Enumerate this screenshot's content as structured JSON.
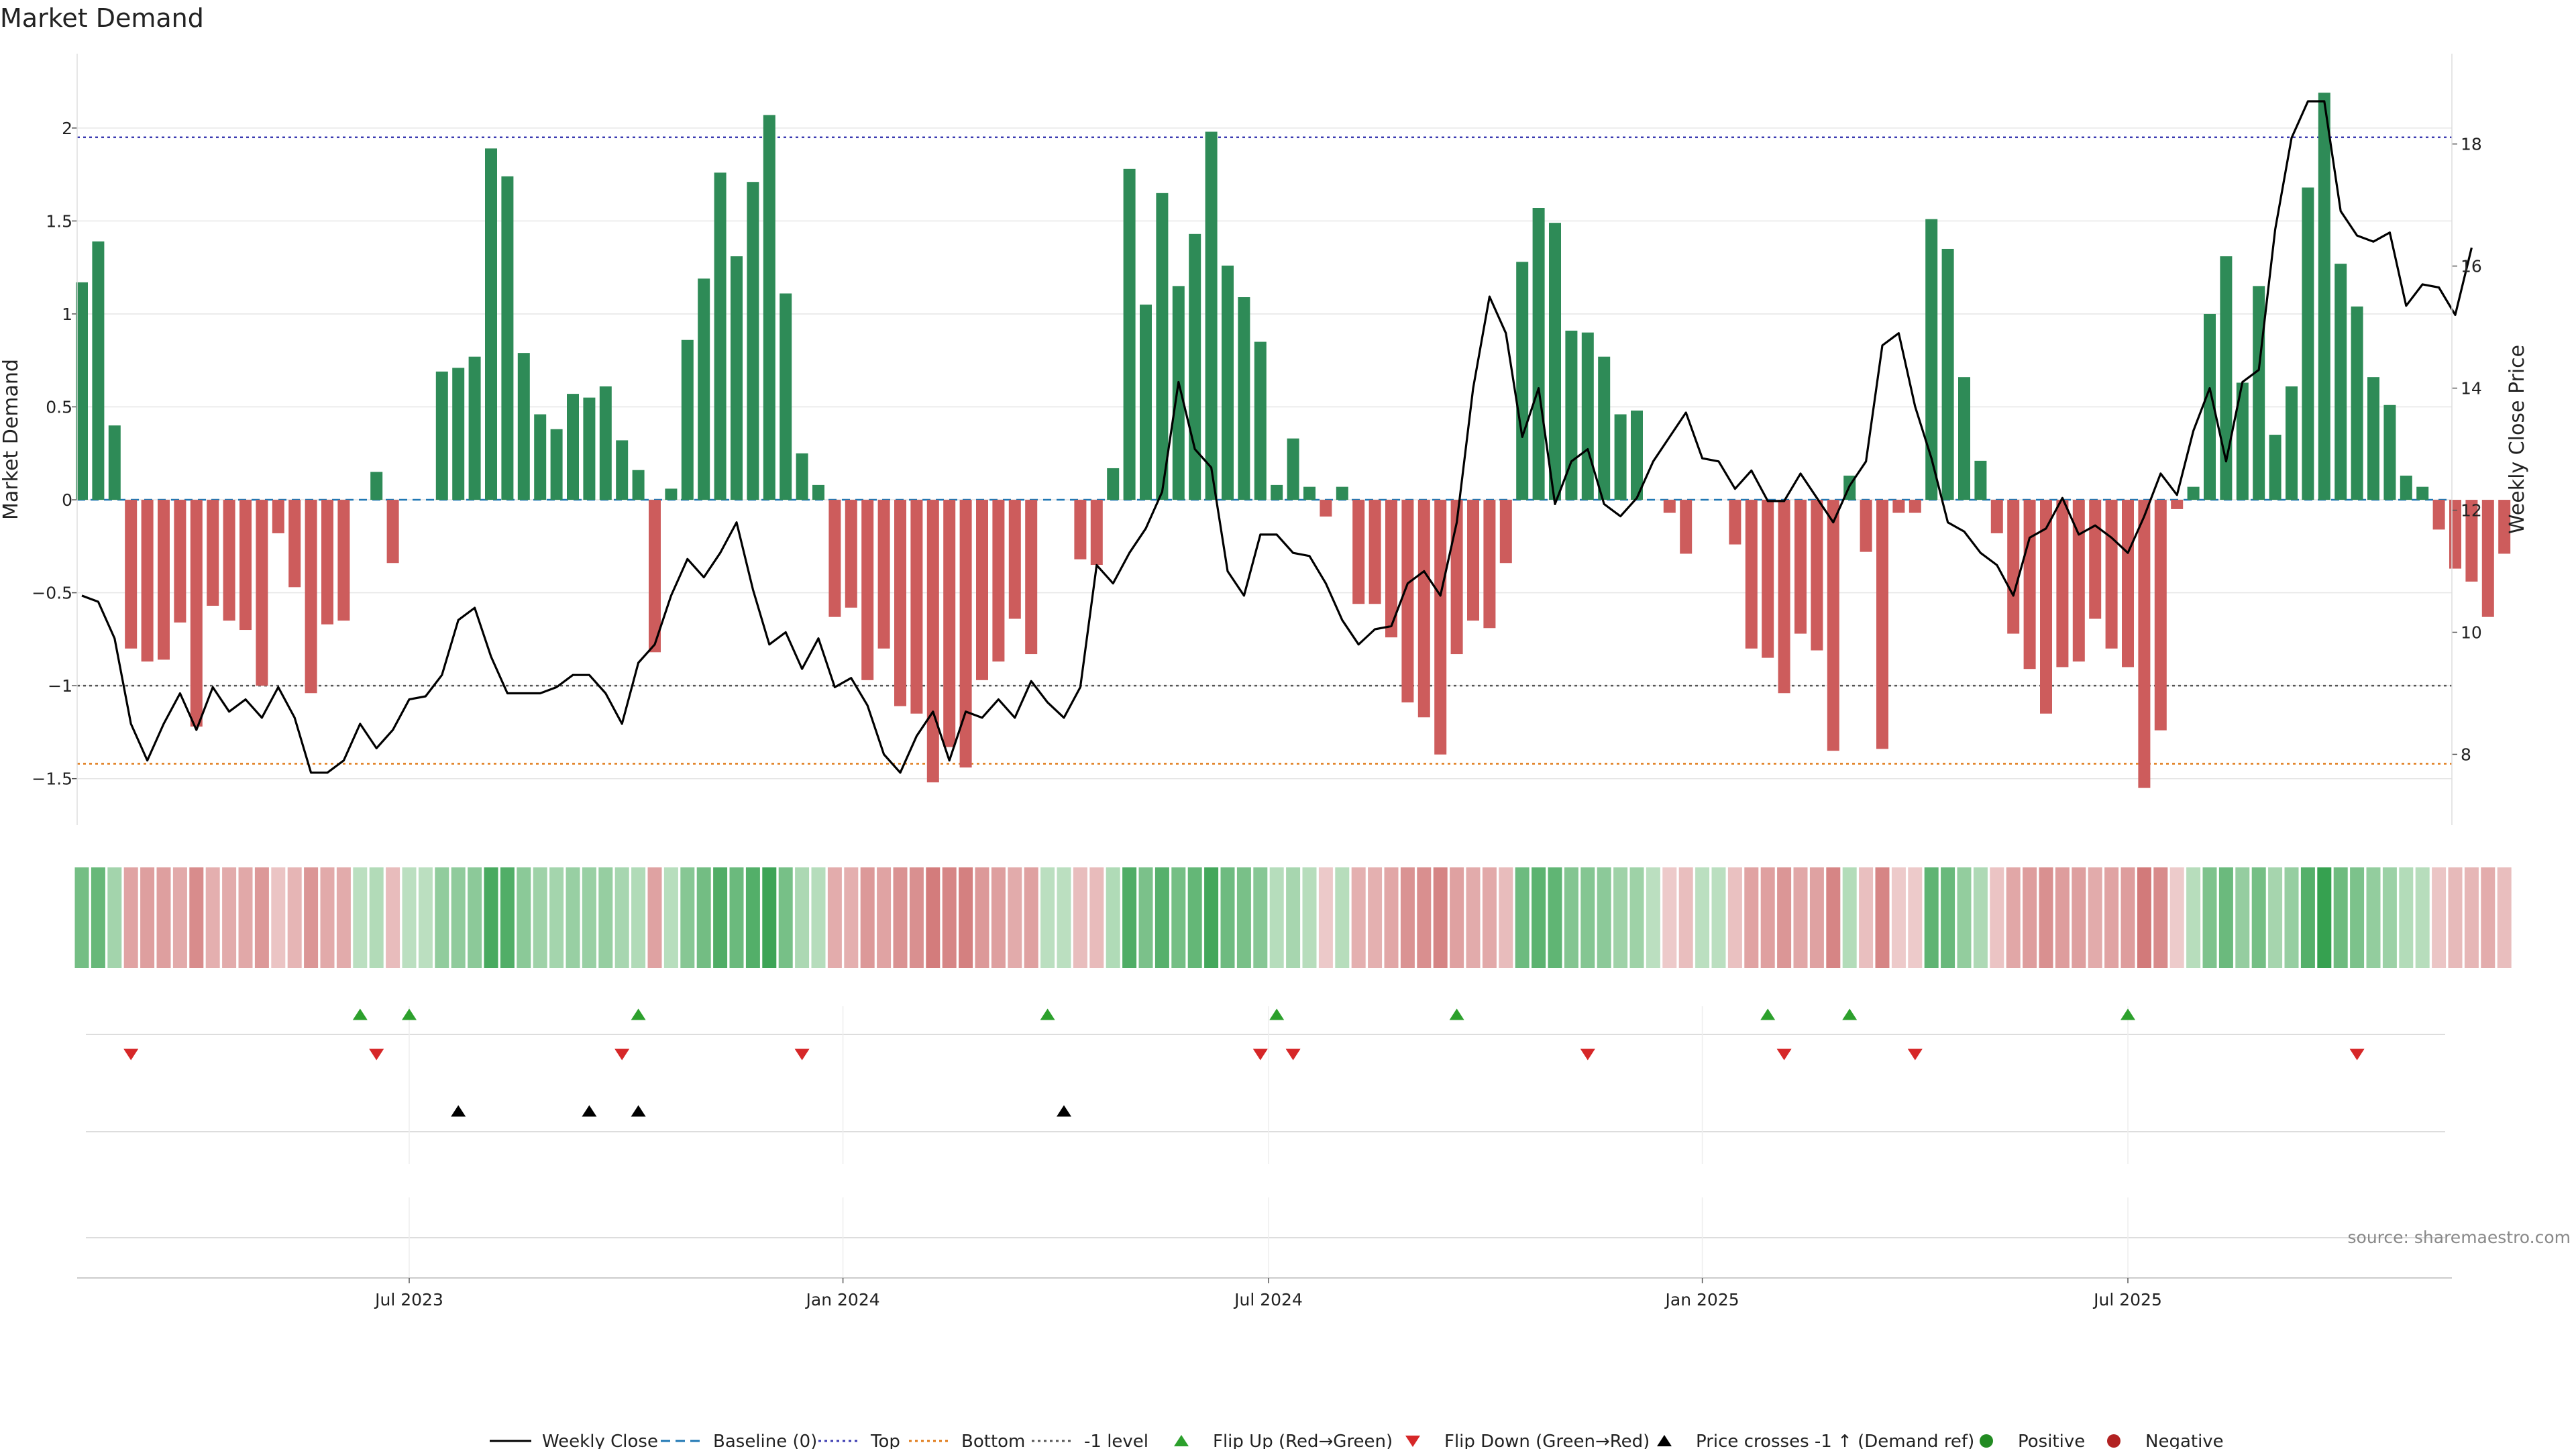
{
  "chart_data": {
    "type": "bar",
    "title": "Market Demand",
    "ylabel_left": "Market Demand",
    "ylabel_right": "Weekly Close Price",
    "ylim_left": [
      -1.75,
      2.4
    ],
    "ylim_right": [
      6.84,
      19.48
    ],
    "yticks_left": [
      {
        "value": 2,
        "label": "2"
      },
      {
        "value": 1.5,
        "label": "1.5"
      },
      {
        "value": 1,
        "label": "1"
      },
      {
        "value": 0.5,
        "label": "0.5"
      },
      {
        "value": 0,
        "label": "0"
      },
      {
        "value": -0.5,
        "label": "−0.5"
      },
      {
        "value": -1,
        "label": "−1"
      },
      {
        "value": -1.5,
        "label": "−1.5"
      }
    ],
    "yticks_right": [
      {
        "value": 18,
        "label": "18"
      },
      {
        "value": 16,
        "label": "16"
      },
      {
        "value": 14,
        "label": "14"
      },
      {
        "value": 12,
        "label": "12"
      },
      {
        "value": 10,
        "label": "10"
      },
      {
        "value": 8,
        "label": "8"
      }
    ],
    "x_ticks": [
      {
        "week": 20,
        "label": "Jul 2023"
      },
      {
        "week": 46.5,
        "label": "Jan 2024"
      },
      {
        "week": 72.5,
        "label": "Jul 2024"
      },
      {
        "week": 99,
        "label": "Jan 2025"
      },
      {
        "week": 125,
        "label": "Jul 2025"
      }
    ],
    "reference_lines": {
      "baseline": 0,
      "top": 1.95,
      "bottom": -1.42,
      "minus_one": -1
    },
    "demand": [
      1.17,
      1.39,
      0.4,
      -0.8,
      -0.87,
      -0.86,
      -0.66,
      -1.22,
      -0.57,
      -0.65,
      -0.7,
      -1.0,
      -0.18,
      -0.47,
      -1.04,
      -0.67,
      -0.65,
      0,
      0.15,
      -0.34,
      0,
      0,
      0.69,
      0.71,
      0.77,
      1.89,
      1.74,
      0.79,
      0.46,
      0.38,
      0.57,
      0.55,
      0.61,
      0.32,
      0.16,
      -0.82,
      0.06,
      0.86,
      1.19,
      1.76,
      1.31,
      1.71,
      2.07,
      1.11,
      0.25,
      0.08,
      -0.63,
      -0.58,
      -0.97,
      -0.8,
      -1.11,
      -1.15,
      -1.52,
      -1.33,
      -1.44,
      -0.97,
      -0.87,
      -0.64,
      -0.83,
      0,
      0,
      -0.32,
      -0.35,
      0.17,
      1.78,
      1.05,
      1.65,
      1.15,
      1.43,
      1.98,
      1.26,
      1.09,
      0.85,
      0.08,
      0.33,
      0.07,
      -0.09,
      0.07,
      -0.56,
      -0.56,
      -0.74,
      -1.09,
      -1.17,
      -1.37,
      -0.83,
      -0.65,
      -0.69,
      -0.34,
      1.28,
      1.57,
      1.49,
      0.91,
      0.9,
      0.77,
      0.46,
      0.48,
      0,
      -0.07,
      -0.29,
      0,
      0,
      -0.24,
      -0.8,
      -0.85,
      -1.04,
      -0.72,
      -0.81,
      -1.35,
      0.13,
      -0.28,
      -1.34,
      -0.07,
      -0.07,
      1.51,
      1.35,
      0.66,
      0.21,
      -0.18,
      -0.72,
      -0.91,
      -1.15,
      -0.9,
      -0.87,
      -0.64,
      -0.8,
      -0.9,
      -1.55,
      -1.24,
      -0.05,
      0.07,
      1.0,
      1.31,
      0.63,
      1.15,
      0.35,
      0.61,
      1.68,
      2.19,
      1.27,
      1.04,
      0.66,
      0.51,
      0.13,
      0.07,
      -0.16,
      -0.37,
      -0.44,
      -0.63,
      -0.29
    ],
    "close": [
      10.6,
      10.5,
      9.9,
      8.5,
      7.9,
      8.5,
      9.0,
      8.4,
      9.1,
      8.7,
      8.9,
      8.6,
      9.1,
      8.6,
      7.7,
      7.7,
      7.9,
      8.5,
      8.1,
      8.4,
      8.9,
      8.95,
      9.3,
      10.2,
      10.4,
      9.6,
      9.0,
      9.0,
      9.0,
      9.1,
      9.3,
      9.3,
      9.0,
      8.5,
      9.5,
      9.8,
      10.6,
      11.2,
      10.9,
      11.3,
      11.8,
      10.7,
      9.8,
      10.0,
      9.4,
      9.9,
      9.1,
      9.25,
      8.8,
      8.0,
      7.7,
      8.3,
      8.7,
      7.9,
      8.7,
      8.6,
      8.9,
      8.6,
      9.2,
      8.85,
      8.6,
      9.1,
      11.1,
      10.8,
      11.3,
      11.7,
      12.3,
      14.1,
      13.0,
      12.7,
      11.0,
      10.6,
      11.6,
      11.6,
      11.3,
      11.25,
      10.8,
      10.2,
      9.8,
      10.05,
      10.1,
      10.8,
      11.0,
      10.6,
      11.8,
      14.0,
      15.5,
      14.9,
      13.2,
      14.0,
      12.1,
      12.8,
      13.0,
      12.1,
      11.9,
      12.2,
      12.8,
      13.2,
      13.6,
      12.85,
      12.8,
      12.35,
      12.65,
      12.15,
      12.15,
      12.6,
      12.2,
      11.8,
      12.4,
      12.8,
      14.7,
      14.9,
      13.7,
      12.85,
      11.8,
      11.65,
      11.3,
      11.1,
      10.6,
      11.55,
      11.7,
      12.2,
      11.6,
      11.75,
      11.55,
      11.3,
      11.9,
      12.6,
      12.25,
      13.3,
      14.0,
      12.8,
      14.1,
      14.3,
      16.6,
      18.1,
      18.7,
      18.7,
      16.9,
      16.5,
      16.4,
      16.55,
      15.35,
      15.7,
      15.65,
      15.2,
      16.3
    ],
    "flip_up_weeks": [
      17,
      20,
      34,
      59,
      73,
      84,
      103,
      108,
      125
    ],
    "flip_down_weeks": [
      3,
      18,
      33,
      44,
      72,
      74,
      92,
      104,
      112,
      139
    ],
    "price_cross_weeks": [
      23,
      31,
      34,
      60
    ],
    "legend": [
      {
        "key": "close",
        "label": "Weekly Close"
      },
      {
        "key": "baseline",
        "label": "Baseline (0)"
      },
      {
        "key": "top",
        "label": "Top"
      },
      {
        "key": "bottom",
        "label": "Bottom"
      },
      {
        "key": "minus1",
        "label": "-1 level"
      },
      {
        "key": "flipup",
        "label": "Flip Up (Red→Green)"
      },
      {
        "key": "flipdown",
        "label": "Flip Down (Green→Red)"
      },
      {
        "key": "cross",
        "label": "Price crosses -1 ↑ (Demand ref)"
      },
      {
        "key": "positive",
        "label": "Positive"
      },
      {
        "key": "negative",
        "label": "Negative"
      }
    ],
    "source": "source: sharemaestro.com"
  },
  "colors": {
    "positive_bar": "#2e8b57",
    "negative_bar": "#cd5c5c",
    "close_line": "#000000",
    "baseline": "#1f77b4",
    "top": "#3a3ab0",
    "bottom": "#e07b1a",
    "minus_one": "#555555",
    "flip_up": "#2ca02c",
    "flip_down": "#d62728",
    "cross": "#000000",
    "positive_dot": "#228b22",
    "negative_dot": "#b22222",
    "grid": "#e6e6e6"
  }
}
